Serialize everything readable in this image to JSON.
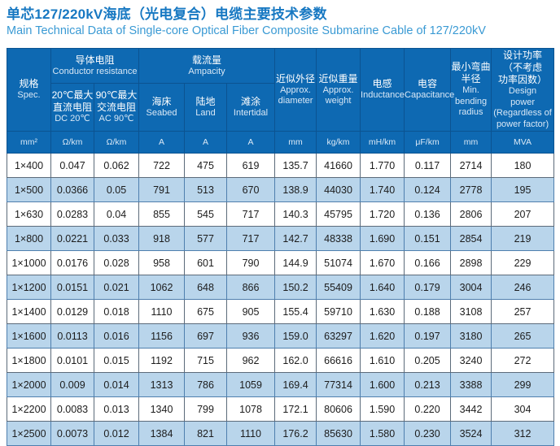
{
  "colors": {
    "header_bg": "#0e69b2",
    "band_bg": "#b9d5eb",
    "title": "#1778c2",
    "subtitle": "#3a9ad4"
  },
  "page": {
    "title_zh": "单芯127/220kV海底（光电复合）电缆主要技术参数",
    "title_en": "Main Technical Data of Single-core Optical Fiber Composite Submarine Cable of 127/220kV"
  },
  "table": {
    "header": {
      "spec": {
        "zh": "规格",
        "en": "Spec."
      },
      "resistance_group": {
        "zh": "导体电阻",
        "en": "Conductor resistance"
      },
      "ampacity_group": {
        "zh": "载流量",
        "en": "Ampacity"
      },
      "dc": {
        "zh": "20℃最大\n直流电阻",
        "en": "DC 20℃"
      },
      "ac": {
        "zh": "90℃最大\n交流电阻",
        "en": "AC 90℃"
      },
      "seabed": {
        "zh": "海床",
        "en": "Seabed"
      },
      "land": {
        "zh": "陆地",
        "en": "Land"
      },
      "intertidal": {
        "zh": "滩涂",
        "en": "Intertidal"
      },
      "diameter": {
        "zh": "近似外径",
        "en": "Approx.\ndiameter"
      },
      "weight": {
        "zh": "近似重量",
        "en": "Approx.\nweight"
      },
      "inductance": {
        "zh": "电感",
        "en": "Inductance"
      },
      "capacitance": {
        "zh": "电容",
        "en": "Capacitance"
      },
      "bending": {
        "zh": "最小弯曲\n半径",
        "en": "Min.\nbending\nradius"
      },
      "power": {
        "zh": "设计功率\n（不考虑\n功率因数）",
        "en": "Design\npower\n(Regardless of\npower factor)"
      },
      "units": [
        "mm²",
        "Ω/km",
        "Ω/km",
        "A",
        "A",
        "A",
        "mm",
        "kg/km",
        "mH/km",
        "μF/km",
        "mm",
        "MVA"
      ]
    },
    "rows": [
      [
        "1×400",
        "0.047",
        "0.062",
        "722",
        "475",
        "619",
        "135.7",
        "41660",
        "1.770",
        "0.117",
        "2714",
        "180"
      ],
      [
        "1×500",
        "0.0366",
        "0.05",
        "791",
        "513",
        "670",
        "138.9",
        "44030",
        "1.740",
        "0.124",
        "2778",
        "195"
      ],
      [
        "1×630",
        "0.0283",
        "0.04",
        "855",
        "545",
        "717",
        "140.3",
        "45795",
        "1.720",
        "0.136",
        "2806",
        "207"
      ],
      [
        "1×800",
        "0.0221",
        "0.033",
        "918",
        "577",
        "717",
        "142.7",
        "48338",
        "1.690",
        "0.151",
        "2854",
        "219"
      ],
      [
        "1×1000",
        "0.0176",
        "0.028",
        "958",
        "601",
        "790",
        "144.9",
        "51074",
        "1.670",
        "0.166",
        "2898",
        "229"
      ],
      [
        "1×1200",
        "0.0151",
        "0.021",
        "1062",
        "648",
        "866",
        "150.2",
        "55409",
        "1.640",
        "0.179",
        "3004",
        "246"
      ],
      [
        "1×1400",
        "0.0129",
        "0.018",
        "1110",
        "675",
        "905",
        "155.4",
        "59710",
        "1.630",
        "0.188",
        "3108",
        "257"
      ],
      [
        "1×1600",
        "0.0113",
        "0.016",
        "1156",
        "697",
        "936",
        "159.0",
        "63297",
        "1.620",
        "0.197",
        "3180",
        "265"
      ],
      [
        "1×1800",
        "0.0101",
        "0.015",
        "1192",
        "715",
        "962",
        "162.0",
        "66616",
        "1.610",
        "0.205",
        "3240",
        "272"
      ],
      [
        "1×2000",
        "0.009",
        "0.014",
        "1313",
        "786",
        "1059",
        "169.4",
        "77314",
        "1.600",
        "0.213",
        "3388",
        "299"
      ],
      [
        "1×2200",
        "0.0083",
        "0.013",
        "1340",
        "799",
        "1078",
        "172.1",
        "80606",
        "1.590",
        "0.220",
        "3442",
        "304"
      ],
      [
        "1×2500",
        "0.0073",
        "0.012",
        "1384",
        "821",
        "1110",
        "176.2",
        "85630",
        "1.580",
        "0.230",
        "3524",
        "312"
      ]
    ]
  }
}
